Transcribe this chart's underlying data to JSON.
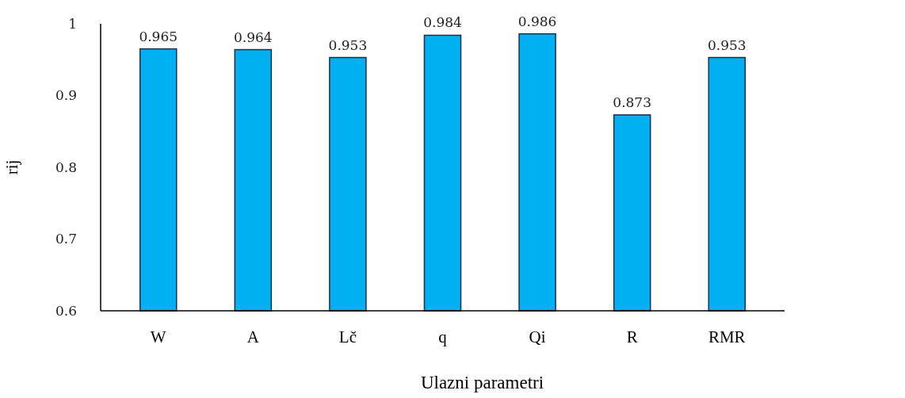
{
  "chart_data": {
    "type": "bar",
    "xlabel": "Ulazni parametri",
    "ylabel": "rij",
    "categories": [
      "W",
      "A",
      "Lč",
      "q",
      "Qi",
      "R",
      "RMR"
    ],
    "values": [
      0.965,
      0.964,
      0.953,
      0.984,
      0.986,
      0.873,
      0.953
    ],
    "color": "#00b0f0",
    "ylim": [
      0.6,
      1
    ],
    "yticks": [
      0.6,
      0.7,
      0.8,
      0.9,
      1
    ],
    "data_labels": true,
    "grid": false
  }
}
